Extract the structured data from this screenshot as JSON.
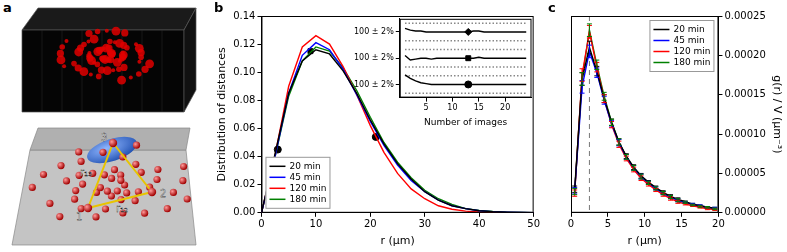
{
  "panel_a": {
    "panel_label": "a",
    "points": [
      "1",
      "2",
      "3"
    ],
    "distances": [
      "r₁₂",
      "r₁₃"
    ]
  },
  "chart_data": [
    {
      "type": "line",
      "panel_label": "b",
      "x_label": "r (μm)",
      "y_label": "Distribution of distances",
      "x": [
        0,
        2.5,
        5,
        7.5,
        10,
        12.5,
        15,
        17.5,
        20,
        22.5,
        25,
        27.5,
        30,
        32.5,
        35,
        37.5,
        40,
        42.5,
        45,
        47.5,
        50
      ],
      "series": [
        {
          "name": "20 min",
          "color": "#000000",
          "values": [
            0,
            0.042,
            0.085,
            0.108,
            0.116,
            0.113,
            0.101,
            0.085,
            0.066,
            0.049,
            0.035,
            0.024,
            0.015,
            0.009,
            0.005,
            0.003,
            0.0015,
            0.0008,
            0.0004,
            0.0002,
            0.0001
          ]
        },
        {
          "name": "45 min",
          "color": "#0000ff",
          "values": [
            0,
            0.04,
            0.085,
            0.112,
            0.121,
            0.116,
            0.102,
            0.084,
            0.065,
            0.048,
            0.034,
            0.023,
            0.015,
            0.009,
            0.005,
            0.003,
            0.0015,
            0.0008,
            0.0004,
            0.0002,
            0.0001
          ]
        },
        {
          "name": "120 min",
          "color": "#ff0000",
          "values": [
            0,
            0.041,
            0.09,
            0.118,
            0.126,
            0.12,
            0.104,
            0.084,
            0.062,
            0.043,
            0.028,
            0.017,
            0.01,
            0.005,
            0.0025,
            0.0012,
            0.0006,
            0.0003,
            0.0001,
            0,
            0
          ]
        },
        {
          "name": "180 min",
          "color": "#008000",
          "values": [
            0,
            0.04,
            0.083,
            0.108,
            0.118,
            0.115,
            0.103,
            0.087,
            0.068,
            0.05,
            0.036,
            0.025,
            0.016,
            0.01,
            0.006,
            0.003,
            0.0017,
            0.0009,
            0.0004,
            0.0002,
            0.0001
          ]
        },
        {
          "type": "scatter",
          "marker": "circle",
          "color": "#000000",
          "x": [
            3
          ],
          "values": [
            0.045
          ]
        },
        {
          "type": "scatter",
          "marker": "square",
          "color": "#000000",
          "x": [
            9
          ],
          "values": [
            0.115
          ]
        },
        {
          "type": "scatter",
          "marker": "circle",
          "color": "#000000",
          "x": [
            21
          ],
          "values": [
            0.054
          ]
        }
      ],
      "xlim": [
        0,
        50
      ],
      "xticks": [
        0,
        10,
        20,
        30,
        40,
        50
      ],
      "ylim": [
        0,
        0.14
      ],
      "yticks": [
        {
          "value": 0,
          "label": "0.00"
        },
        {
          "value": 0.02,
          "label": "0.02"
        },
        {
          "value": 0.04,
          "label": "0.04"
        },
        {
          "value": 0.06,
          "label": "0.06"
        },
        {
          "value": 0.08,
          "label": "0.08"
        },
        {
          "value": 0.1,
          "label": "0.10"
        },
        {
          "value": 0.12,
          "label": "0.12"
        },
        {
          "value": 0.14,
          "label": "0.14"
        }
      ],
      "grid": false,
      "legend": "lower left",
      "inset": {
        "type": "line",
        "x_label": "Number of images",
        "x": [
          1,
          2,
          3,
          4,
          5,
          6,
          7,
          8,
          9,
          10,
          11,
          12,
          13,
          14,
          15,
          16,
          17,
          18,
          19,
          20,
          21,
          22,
          23,
          24
        ],
        "series": [
          {
            "color": "#000000",
            "values": [
              7.9,
              7.7,
              7.6,
              7.6,
              7.5,
              7.5,
              7.5,
              7.5,
              7.5,
              7.5,
              7.5,
              7.5,
              7.5,
              7.6,
              7.6,
              7.5,
              7.5,
              7.5,
              7.5,
              7.5,
              7.5,
              7.5,
              7.5,
              7.5
            ]
          },
          {
            "color": "#000000",
            "values": [
              4.8,
              4.3,
              4.4,
              4.5,
              4.5,
              4.4,
              4.5,
              4.5,
              4.5,
              4.5,
              4.5,
              4.5,
              4.5,
              4.5,
              4.6,
              4.5,
              4.5,
              4.5,
              4.5,
              4.5,
              4.5,
              4.5,
              4.5,
              4.5
            ]
          },
          {
            "color": "#000000",
            "values": [
              2.6,
              2.2,
              1.9,
              1.7,
              1.6,
              1.5,
              1.5,
              1.5,
              1.5,
              1.5,
              1.5,
              1.5,
              1.5,
              1.5,
              1.5,
              1.5,
              1.5,
              1.5,
              1.5,
              1.5,
              1.5,
              1.5,
              1.5,
              1.5
            ]
          },
          {
            "type": "scatter",
            "marker": "diamond",
            "color": "#000000",
            "x": [
              13
            ],
            "values": [
              7.5
            ]
          },
          {
            "type": "scatter",
            "marker": "square",
            "color": "#000000",
            "x": [
              13
            ],
            "values": [
              4.5
            ]
          },
          {
            "type": "scatter",
            "marker": "circle",
            "color": "#000000",
            "x": [
              13
            ],
            "values": [
              1.5
            ]
          },
          {
            "color": "#888888",
            "line_style": "dotted",
            "x": [
              1,
              24
            ],
            "values": [
              8.5,
              8.5
            ]
          },
          {
            "color": "#888888",
            "line_style": "dotted",
            "x": [
              1,
              24
            ],
            "values": [
              6.5,
              6.5
            ]
          },
          {
            "color": "#888888",
            "line_style": "dotted",
            "x": [
              1,
              24
            ],
            "values": [
              5.5,
              5.5
            ]
          },
          {
            "color": "#888888",
            "line_style": "dotted",
            "x": [
              1,
              24
            ],
            "values": [
              3.5,
              3.5
            ]
          },
          {
            "color": "#888888",
            "line_style": "dotted",
            "x": [
              1,
              24
            ],
            "values": [
              2.5,
              2.5
            ]
          },
          {
            "color": "#888888",
            "line_style": "dotted",
            "x": [
              1,
              24
            ],
            "values": [
              0.5,
              0.5
            ]
          }
        ],
        "xlim": [
          0,
          25
        ],
        "xticks": [
          5,
          10,
          15,
          20
        ],
        "ylim": [
          0,
          9
        ],
        "yticks": [
          {
            "value": 1.5,
            "label": "100 ± 2%"
          },
          {
            "value": 4.5,
            "label": "100 ± 2%"
          },
          {
            "value": 7.5,
            "label": "100 ± 2%"
          }
        ],
        "grid": false
      }
    },
    {
      "type": "line",
      "panel_label": "c",
      "x_label": "r (μm)",
      "y_label": "g(r) / V (μm⁻³)",
      "x": [
        0.5,
        1.5,
        2.5,
        3.5,
        4.5,
        5.5,
        6.5,
        7.5,
        8.5,
        9.5,
        10.5,
        11.5,
        12.5,
        13.5,
        14.5,
        15.5,
        16.5,
        17.5,
        18.5,
        19.5
      ],
      "series": [
        {
          "name": "20 min",
          "color": "#000000",
          "values": [
            3e-05,
            0.00017,
            0.00021,
            0.00018,
            0.000145,
            0.000115,
            9e-05,
            7.2e-05,
            5.8e-05,
            4.7e-05,
            3.9e-05,
            3.2e-05,
            2.6e-05,
            2.1e-05,
            1.7e-05,
            1.4e-05,
            1.1e-05,
            9e-06,
            7e-06,
            6e-06
          ],
          "errors": [
            4e-06,
            8e-06,
            8e-06,
            6e-06,
            5e-06,
            4e-06,
            4e-06,
            3e-06,
            3e-06,
            3e-06,
            2e-06,
            2e-06,
            2e-06,
            2e-06,
            2e-06,
            1e-06,
            1e-06,
            1e-06,
            1e-06,
            1e-06
          ]
        },
        {
          "name": "45 min",
          "color": "#0000ff",
          "values": [
            2.8e-05,
            0.00016,
            0.000205,
            0.000178,
            0.000143,
            0.000113,
            8.9e-05,
            7.1e-05,
            5.7e-05,
            4.6e-05,
            3.8e-05,
            3.1e-05,
            2.5e-05,
            2e-05,
            1.6e-05,
            1.3e-05,
            1.1e-05,
            9e-06,
            7e-06,
            6e-06
          ],
          "errors": [
            4e-06,
            8e-06,
            8e-06,
            6e-06,
            5e-06,
            4e-06,
            4e-06,
            3e-06,
            3e-06,
            3e-06,
            2e-06,
            2e-06,
            2e-06,
            2e-06,
            2e-06,
            1e-06,
            1e-06,
            1e-06,
            1e-06,
            1e-06
          ]
        },
        {
          "name": "120 min",
          "color": "#ff0000",
          "values": [
            2.5e-05,
            0.000175,
            0.00023,
            0.000185,
            0.000145,
            0.000112,
            8.7e-05,
            6.9e-05,
            5.5e-05,
            4.4e-05,
            3.6e-05,
            2.9e-05,
            2.3e-05,
            1.8e-05,
            1.4e-05,
            1.1e-05,
            9e-06,
            7e-06,
            5e-06,
            4e-06
          ],
          "errors": [
            4e-06,
            8e-06,
            8e-06,
            6e-06,
            5e-06,
            4e-06,
            4e-06,
            3e-06,
            3e-06,
            3e-06,
            2e-06,
            2e-06,
            2e-06,
            2e-06,
            2e-06,
            1e-06,
            1e-06,
            1e-06,
            1e-06,
            1e-06
          ]
        },
        {
          "name": "180 min",
          "color": "#008000",
          "values": [
            2.7e-05,
            0.00017,
            0.000232,
            0.000188,
            0.000148,
            0.000115,
            9e-05,
            7.1e-05,
            5.7e-05,
            4.6e-05,
            3.8e-05,
            3.1e-05,
            2.5e-05,
            2e-05,
            1.6e-05,
            1.3e-05,
            1e-05,
            8e-06,
            7e-06,
            5e-06
          ],
          "errors": [
            4e-06,
            8e-06,
            8e-06,
            6e-06,
            5e-06,
            4e-06,
            4e-06,
            3e-06,
            3e-06,
            3e-06,
            2e-06,
            2e-06,
            2e-06,
            2e-06,
            2e-06,
            1e-06,
            1e-06,
            1e-06,
            1e-06,
            1e-06
          ]
        }
      ],
      "xlim": [
        0,
        20
      ],
      "xticks": [
        0,
        5,
        10,
        15,
        20
      ],
      "ylim": [
        0,
        0.00025
      ],
      "yticks": [
        {
          "value": 0,
          "label": "0.00000"
        },
        {
          "value": 5e-05,
          "label": "0.00005"
        },
        {
          "value": 0.0001,
          "label": "0.00010"
        },
        {
          "value": 0.00015,
          "label": "0.00015"
        },
        {
          "value": 0.0002,
          "label": "0.00020"
        },
        {
          "value": 0.00025,
          "label": "0.00025"
        }
      ],
      "reference_x": 2.5,
      "grid": false,
      "legend": "upper right"
    }
  ]
}
